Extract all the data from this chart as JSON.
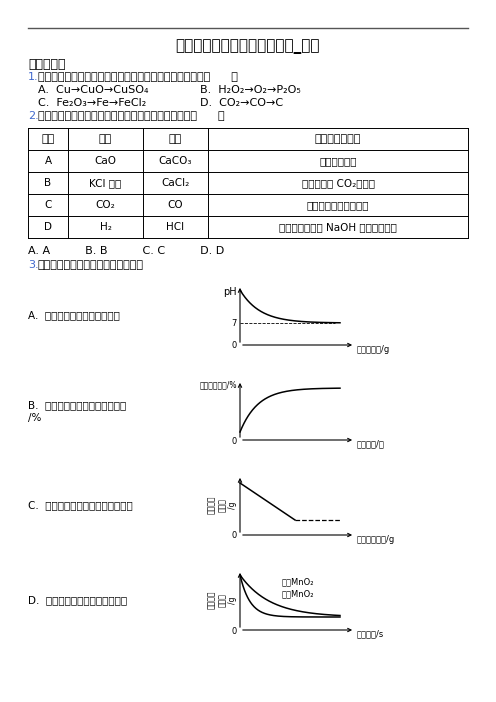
{
  "title": "新高一入学分班考试化学模拟_图文",
  "section1": "一、选择题",
  "q1_num": "1.",
  "q1_text": "下列各组内物质间的转化关系中，存在不能一步转化的是（      ）",
  "q1_A": "A.  Cu→CuO→CuSO₄",
  "q1_B": "B.  H₂O₂→O₂→P₂O₅",
  "q1_C": "C.  Fe₂O₃→Fe→FeCl₂",
  "q1_D": "D.  CO₂→CO→C",
  "q2_num": "2.",
  "q2_text": "除去物质中的少量杂质，下列方法不能达到目的的是（      ）",
  "table_headers": [
    "选项",
    "物质",
    "杂质",
    "除去杂质的方法"
  ],
  "table_rows": [
    [
      "A",
      "CaO",
      "CaCO₃",
      "高温充分煅烧"
    ],
    [
      "B",
      "KCl 溶液",
      "CaCl₂",
      "通入足量的 CO₂，过滤"
    ],
    [
      "C",
      "CO₂",
      "CO",
      "通过足量的灼热氧化铜"
    ],
    [
      "D",
      "H₂",
      "HCl",
      "依次通过足量的 NaOH 溶液和浓硫酸"
    ]
  ],
  "answer_line": "A. A          B. B          C. C          D. D",
  "q3_num": "3.",
  "q3_text": "下列图像能正确反映其对应关系的是",
  "graph_A_label": "A.  向氢氧化钠溶液中加水稀释",
  "graph_A_xlabel": "加水的质量/g",
  "graph_A_ylabel": "pH",
  "graph_B_label": "B.  浓硫酸敞口放置一段时间分数",
  "graph_B_label2": "/%",
  "graph_B_xlabel": "放置时间/天",
  "graph_B_ylabel": "溶液质量\n分数\n/%",
  "graph_C_label": "C.  向饱和石灰水中加入少量生石灰",
  "graph_C_xlabel": "生石灰的质量/g",
  "graph_C_ylabel": "溶液中溶\n质质量\n/g",
  "graph_D_label": "D.  催化剂对过氧化氢分解的影响",
  "graph_D_xlabel": "反应时间/s",
  "graph_D_ylabel": "产生氧气\n的质量\n/g",
  "graph_D_legend1": "加入MnO₂",
  "graph_D_legend2": "不加MnO₂",
  "bg_color": "#ffffff",
  "text_color": "#000000",
  "blue_color": "#4169CD"
}
